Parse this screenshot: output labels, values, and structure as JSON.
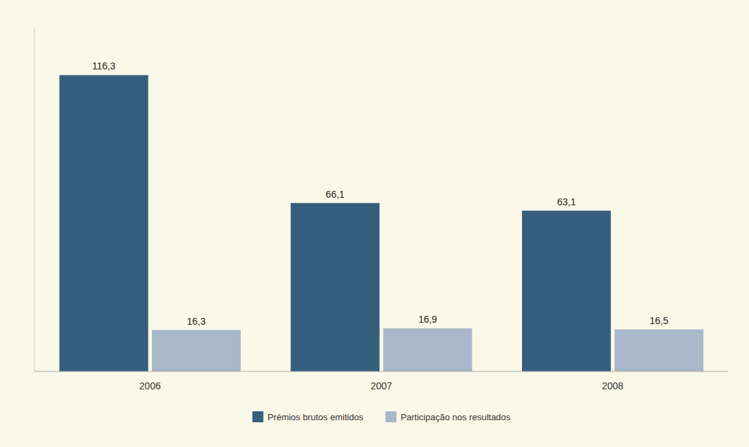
{
  "chart_data": {
    "type": "bar",
    "categories": [
      "2006",
      "2007",
      "2008"
    ],
    "series": [
      {
        "name": "Prémios brutos emitidos",
        "color": "#365f7e",
        "values": [
          116.3,
          66.1,
          63.1
        ],
        "value_labels": [
          "116,3",
          "66,1",
          "63,1"
        ]
      },
      {
        "name": "Participação nos resultados",
        "color": "#a8b8c8",
        "values": [
          16.3,
          16.9,
          16.5
        ],
        "value_labels": [
          "16,3",
          "16,9",
          "16,5"
        ]
      }
    ],
    "ylim": [
      0,
      135
    ],
    "grid": false,
    "legend": "bottom",
    "data_labels": true,
    "tick_labels": "x"
  }
}
